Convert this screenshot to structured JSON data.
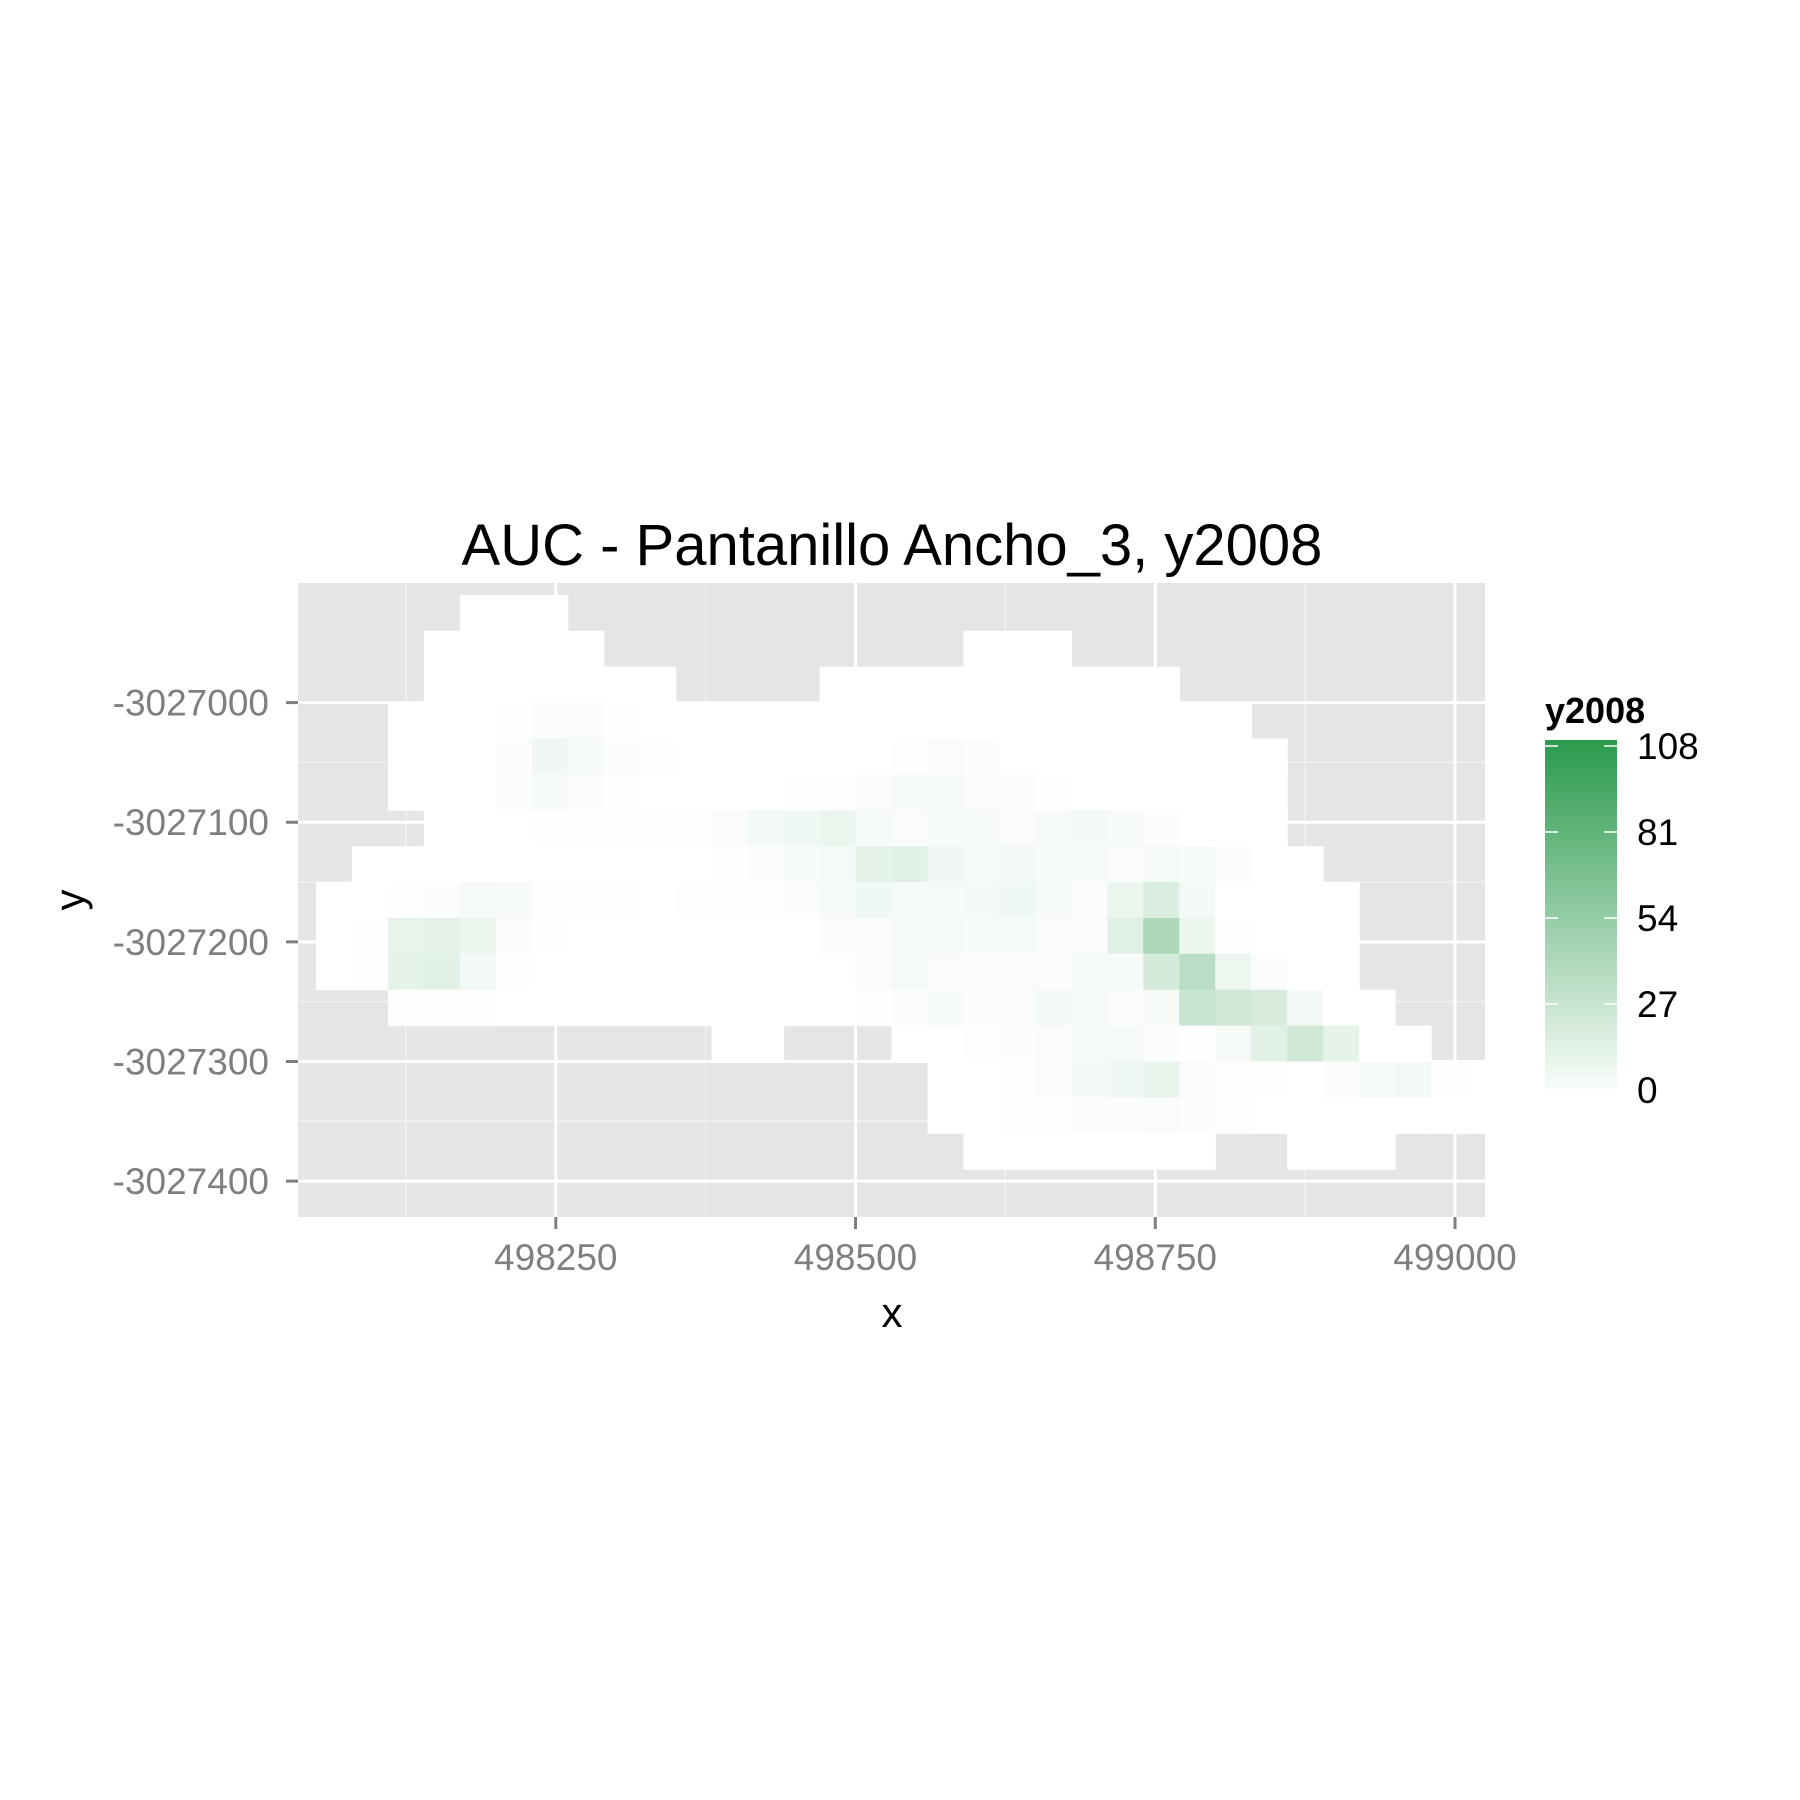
{
  "chart_data": {
    "type": "heatmap",
    "title": "AUC - Pantanillo Ancho_3, y2008",
    "xlabel": "x",
    "ylabel": "y",
    "xlim": [
      498035,
      499025
    ],
    "ylim": [
      -3027430,
      -3026900
    ],
    "x_ticks": [
      498250,
      498500,
      498750,
      499000
    ],
    "x_tick_labels": [
      "498250",
      "498500",
      "498750",
      "499000"
    ],
    "y_ticks": [
      -3027000,
      -3027100,
      -3027200,
      -3027300,
      -3027400
    ],
    "y_tick_labels": [
      "-3027000",
      "-3027100",
      "-3027200",
      "-3027300",
      "-3027400"
    ],
    "cell_size": 30,
    "grid": true,
    "background_color": "#e5e5e5",
    "legend": {
      "title": "y2008",
      "position": "right",
      "breaks": [
        0,
        27,
        54,
        81,
        108
      ],
      "labels": [
        "0",
        "27",
        "54",
        "81",
        "108"
      ],
      "low_color": "#ffffff",
      "high_color": "#2b9a4c",
      "max": 108
    },
    "rows": [
      {
        "y": -3026925,
        "x0": 498185,
        "values": [
          0,
          0,
          0
        ]
      },
      {
        "y": -3026955,
        "x0": 498155,
        "values": [
          0,
          0,
          0,
          0,
          0
        ]
      },
      {
        "y": -3026955,
        "x0": 498605,
        "values": [
          0,
          0,
          0
        ]
      },
      {
        "y": -3026985,
        "x0": 498155,
        "values": [
          0,
          0,
          0,
          0,
          0,
          0,
          0
        ]
      },
      {
        "y": -3026985,
        "x0": 498485,
        "values": [
          0,
          0,
          0,
          0,
          0,
          0,
          0,
          0,
          0,
          0
        ]
      },
      {
        "y": -3027015,
        "x0": 498125,
        "values": [
          0,
          0,
          0,
          1,
          2,
          3,
          1,
          0,
          0,
          0,
          0,
          0,
          0,
          0,
          0,
          0,
          0,
          0,
          0,
          0,
          0,
          0,
          0,
          0
        ]
      },
      {
        "y": -3027045,
        "x0": 498125,
        "values": [
          0,
          0,
          0,
          2,
          7,
          4,
          2,
          1,
          0,
          0,
          0,
          0,
          0,
          0,
          1,
          3,
          2,
          0,
          0,
          0,
          0,
          0,
          0,
          0,
          0
        ]
      },
      {
        "y": -3027075,
        "x0": 498125,
        "values": [
          0,
          0,
          0,
          2,
          4,
          3,
          1,
          0,
          0,
          0,
          0,
          1,
          1,
          2,
          4,
          4,
          3,
          2,
          1,
          0,
          0,
          0,
          0,
          0,
          0
        ]
      },
      {
        "y": -3027105,
        "x0": 498155,
        "values": [
          0,
          0,
          0,
          1,
          1,
          1,
          1,
          1,
          3,
          6,
          8,
          10,
          4,
          3,
          4,
          4,
          3,
          4,
          6,
          4,
          2,
          0,
          0,
          0
        ]
      },
      {
        "y": -3027135,
        "x0": 498095,
        "values": [
          0,
          0,
          0,
          0,
          0,
          0,
          0,
          0,
          0,
          0,
          1,
          2,
          4,
          5,
          14,
          15,
          7,
          4,
          6,
          5,
          4,
          3,
          5,
          4,
          2,
          0,
          0
        ]
      },
      {
        "y": -3027165,
        "x0": 498065,
        "values": [
          0,
          0,
          1,
          2,
          5,
          4,
          1,
          1,
          1,
          0,
          1,
          1,
          1,
          2,
          4,
          8,
          4,
          5,
          6,
          8,
          4,
          2,
          10,
          18,
          6,
          0,
          0,
          0,
          0
        ]
      },
      {
        "y": -3027195,
        "x0": 498065,
        "values": [
          0,
          1,
          12,
          14,
          10,
          3,
          1,
          0,
          0,
          0,
          0,
          0,
          0,
          0,
          2,
          3,
          4,
          5,
          4,
          4,
          3,
          3,
          16,
          42,
          10,
          1,
          0,
          0,
          0
        ]
      },
      {
        "y": -3027225,
        "x0": 498065,
        "values": [
          0,
          1,
          13,
          15,
          6,
          1,
          0,
          0,
          0,
          0,
          0,
          0,
          0,
          0,
          0,
          3,
          5,
          3,
          3,
          3,
          3,
          4,
          4,
          22,
          35,
          9,
          2,
          0,
          0
        ]
      },
      {
        "y": -3027255,
        "x0": 498125,
        "values": [
          1,
          1,
          1,
          0,
          0,
          0,
          0,
          0,
          0,
          0,
          0,
          0,
          0,
          1,
          2,
          4,
          2,
          3,
          6,
          5,
          2,
          4,
          28,
          24,
          21,
          6,
          0,
          0
        ]
      },
      {
        "y": -3027285,
        "x0": 498395,
        "values": [
          0,
          0
        ]
      },
      {
        "y": -3027285,
        "x0": 498545,
        "values": [
          0,
          0,
          1,
          2,
          3,
          5,
          5,
          2,
          1,
          5,
          15,
          24,
          13,
          0,
          0
        ]
      },
      {
        "y": -3027315,
        "x0": 498575,
        "values": [
          0,
          0,
          1,
          3,
          6,
          8,
          12,
          3,
          1,
          1,
          0,
          2,
          5,
          6,
          1,
          0,
          0
        ]
      },
      {
        "y": -3027345,
        "x0": 498575,
        "values": [
          0,
          0,
          1,
          1,
          2,
          2,
          3,
          2,
          1,
          0,
          0,
          0,
          0,
          0,
          0,
          0
        ]
      },
      {
        "y": -3027375,
        "x0": 498605,
        "values": [
          0,
          0,
          0,
          0,
          0,
          0,
          0
        ]
      },
      {
        "y": -3027375,
        "x0": 498875,
        "values": [
          0,
          0,
          0
        ]
      }
    ]
  }
}
